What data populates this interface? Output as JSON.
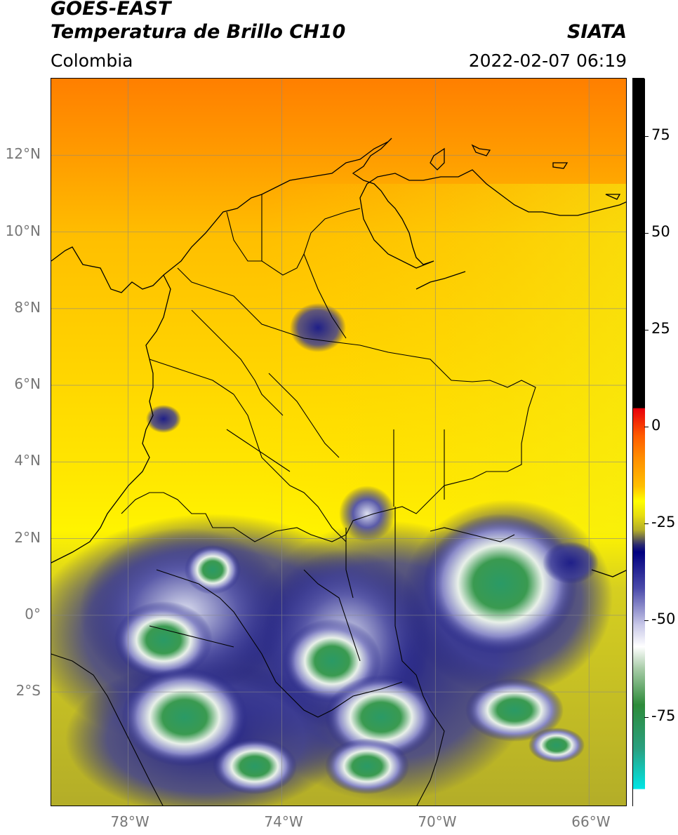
{
  "header": {
    "satellite": "GOES-EAST",
    "product": "Temperatura de Brillo CH10",
    "agency": "SIATA",
    "region": "Colombia",
    "datetime": "2022-02-07 06:19"
  },
  "map": {
    "lat_ticks": [
      "12°N",
      "10°N",
      "8°N",
      "6°N",
      "4°N",
      "2°N",
      "0°",
      "2°S"
    ],
    "lon_ticks": [
      "78°W",
      "74°W",
      "70°W",
      "66°W"
    ],
    "lat_values": [
      12,
      10,
      8,
      6,
      4,
      2,
      0,
      -2
    ],
    "lon_values": [
      -78,
      -74,
      -70,
      -66
    ],
    "lon_range": [
      -80,
      -65
    ],
    "lat_range": [
      -5,
      14
    ]
  },
  "colorbar": {
    "ticks": [
      "75",
      "50",
      "25",
      "0",
      "-25",
      "-50",
      "-75"
    ],
    "tick_values": [
      75,
      50,
      25,
      0,
      -25,
      -50,
      -75
    ],
    "range": [
      -98,
      90
    ],
    "colors": {
      "black": "#000000",
      "red": "#e8000b",
      "orange": "#ff8c00",
      "yellow": "#ffff00",
      "olive": "#b3ad28",
      "navy": "#1a1a80",
      "white": "#ffffff",
      "green": "#2e8b3a",
      "cyan": "#00e5e5"
    }
  }
}
